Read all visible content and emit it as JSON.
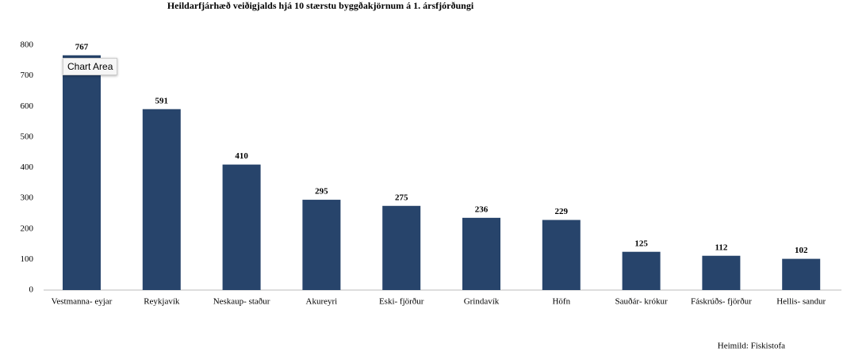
{
  "chart_data": {
    "type": "bar",
    "title": "Heildarfjárhæð veiðigjalds hjá 10 stærstu byggðakjörnum á 1. ársfjórðungi",
    "categories": [
      "Vestmanna- eyjar",
      "Reykjavík",
      "Neskaup- staður",
      "Akureyri",
      "Eski- fjörður",
      "Grindavík",
      "Höfn",
      "Sauðár- krókur",
      "Fáskrúðs- fjörður",
      "Hellis- sandur"
    ],
    "values": [
      767,
      591,
      410,
      295,
      275,
      236,
      229,
      125,
      112,
      102
    ],
    "color": "#27446b",
    "ylim": [
      0,
      800
    ],
    "yticks": [
      0,
      100,
      200,
      300,
      400,
      500,
      600,
      700,
      800
    ],
    "grid": false,
    "source": "Heimild: Fiskistofa"
  },
  "tooltip": "Chart Area"
}
